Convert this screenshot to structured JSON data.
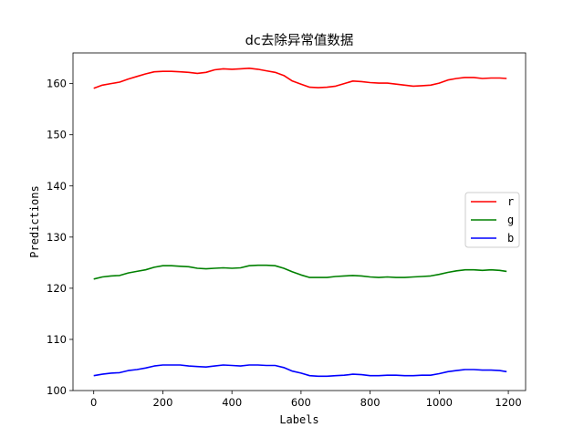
{
  "chart_data": {
    "type": "line",
    "title": "dc去除异常值数据",
    "xlabel": "Labels",
    "ylabel": "Predictions",
    "xlim": [
      -60,
      1250
    ],
    "ylim": [
      100,
      166
    ],
    "xticks": [
      0,
      200,
      400,
      600,
      800,
      1000,
      1200
    ],
    "yticks": [
      100,
      110,
      120,
      130,
      140,
      150,
      160
    ],
    "grid": false,
    "legend_position": "center-right",
    "x": [
      0,
      25,
      50,
      75,
      100,
      125,
      150,
      175,
      200,
      225,
      250,
      275,
      300,
      325,
      350,
      375,
      400,
      425,
      450,
      475,
      500,
      525,
      550,
      575,
      600,
      625,
      650,
      675,
      700,
      725,
      750,
      775,
      800,
      825,
      850,
      875,
      900,
      925,
      950,
      975,
      1000,
      1025,
      1050,
      1075,
      1100,
      1125,
      1150,
      1175,
      1195
    ],
    "series": [
      {
        "name": "r",
        "color": "#ff0000",
        "values": [
          159.1,
          159.7,
          160.0,
          160.3,
          160.9,
          161.4,
          161.9,
          162.3,
          162.4,
          162.4,
          162.3,
          162.2,
          162.0,
          162.2,
          162.7,
          162.9,
          162.8,
          162.9,
          163.0,
          162.8,
          162.5,
          162.2,
          161.6,
          160.5,
          159.9,
          159.3,
          159.2,
          159.3,
          159.5,
          160.0,
          160.5,
          160.4,
          160.2,
          160.1,
          160.1,
          159.9,
          159.7,
          159.5,
          159.6,
          159.7,
          160.1,
          160.7,
          161.0,
          161.2,
          161.2,
          161.0,
          161.1,
          161.1,
          161.0
        ]
      },
      {
        "name": "g",
        "color": "#008000",
        "values": [
          121.8,
          122.2,
          122.4,
          122.5,
          123.0,
          123.3,
          123.6,
          124.1,
          124.4,
          124.4,
          124.3,
          124.2,
          123.9,
          123.8,
          123.9,
          124.0,
          123.9,
          124.0,
          124.4,
          124.5,
          124.5,
          124.4,
          123.9,
          123.2,
          122.6,
          122.1,
          122.1,
          122.1,
          122.3,
          122.4,
          122.5,
          122.4,
          122.2,
          122.1,
          122.2,
          122.1,
          122.1,
          122.2,
          122.3,
          122.4,
          122.7,
          123.1,
          123.4,
          123.6,
          123.6,
          123.5,
          123.6,
          123.5,
          123.3
        ]
      },
      {
        "name": "b",
        "color": "#0000ff",
        "values": [
          102.9,
          103.2,
          103.4,
          103.5,
          103.9,
          104.1,
          104.4,
          104.8,
          105.0,
          105.0,
          105.0,
          104.8,
          104.7,
          104.6,
          104.8,
          105.0,
          104.9,
          104.8,
          105.0,
          105.0,
          104.9,
          104.9,
          104.5,
          103.8,
          103.4,
          102.9,
          102.8,
          102.8,
          102.9,
          103.0,
          103.2,
          103.1,
          102.9,
          102.9,
          103.0,
          103.0,
          102.9,
          102.9,
          103.0,
          103.0,
          103.3,
          103.7,
          103.9,
          104.1,
          104.1,
          104.0,
          104.0,
          103.9,
          103.7
        ]
      }
    ]
  }
}
